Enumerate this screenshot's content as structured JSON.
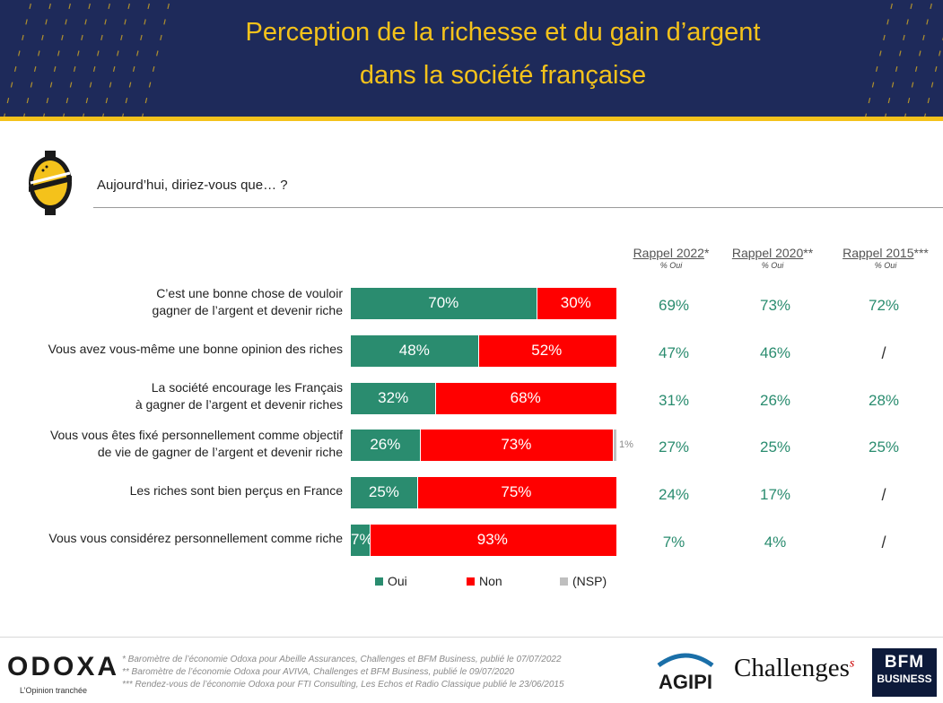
{
  "header": {
    "title_line1": "Perception de la richesse et du gain d’argent",
    "title_line2": "dans la société française"
  },
  "question": "Aujourd’hui, diriez-vous que… ?",
  "rappel": [
    {
      "label": "Rappel 2022",
      "stars": "*",
      "sub": "% Oui"
    },
    {
      "label": "Rappel 2020",
      "stars": "**",
      "sub": "% Oui"
    },
    {
      "label": "Rappel 2015",
      "stars": "***",
      "sub": "% Oui"
    }
  ],
  "chart_data": {
    "type": "bar",
    "orientation": "horizontal",
    "stacked": "100%",
    "categories": [
      "C’est une bonne chose de vouloir gagner de l’argent et devenir riche",
      "Vous avez vous-même une bonne opinion des riches",
      "La société encourage les Français à gagner de l’argent et devenir riches",
      "Vous vous êtes fixé personnellement comme objectif de vie de gagner de l’argent et devenir riche",
      "Les riches sont bien perçus en France",
      "Vous vous considérez personnellement comme riche"
    ],
    "category_lines": [
      [
        "C’est une bonne chose de vouloir",
        "gagner de l’argent et devenir riche"
      ],
      [
        "Vous avez vous-même une bonne opinion des riches"
      ],
      [
        "La société encourage les Français",
        "à gagner de l’argent et devenir riches"
      ],
      [
        "Vous vous êtes fixé personnellement comme objectif",
        "de vie de gagner de l’argent et devenir riche"
      ],
      [
        "Les riches sont bien perçus en France"
      ],
      [
        "Vous vous considérez personnellement comme riche"
      ]
    ],
    "series": [
      {
        "name": "Oui",
        "color": "#2a8c6f",
        "values": [
          70,
          48,
          32,
          26,
          25,
          7
        ]
      },
      {
        "name": "Non",
        "color": "#ff0000",
        "values": [
          30,
          52,
          68,
          73,
          75,
          93
        ]
      },
      {
        "name": "(NSP)",
        "color": "#bfbfbf",
        "values": [
          0,
          0,
          0,
          1,
          0,
          0
        ]
      }
    ],
    "value_suffix": "%",
    "rappel_values": [
      [
        "69%",
        "73%",
        "72%"
      ],
      [
        "47%",
        "46%",
        "/"
      ],
      [
        "31%",
        "26%",
        "28%"
      ],
      [
        "27%",
        "25%",
        "25%"
      ],
      [
        "24%",
        "17%",
        "/"
      ],
      [
        "7%",
        "4%",
        "/"
      ]
    ],
    "legend_position": "bottom"
  },
  "footer": {
    "logo": "ODOXA",
    "tagline": "L’Opinion tranchée",
    "notes": [
      "* Baromètre de l’économie Odoxa  pour Abeille Assurances, Challenges et BFM Business, publié le 07/07/2022",
      "** Baromètre de l’économie Odoxa  pour AVIVA, Challenges et BFM Business, publié le 09/07/2020",
      "*** Rendez-vous de l’économie Odoxa pour FTI Consulting, Les Echos et Radio Classique publié le 23/06/2015"
    ],
    "agipi": "AGIPI",
    "challenges": "Challenges",
    "challenges_mark": "s",
    "bfm_line1": "BFM",
    "bfm_line2": "BUSINESS"
  },
  "colors": {
    "navy": "#1e2a5a",
    "gold": "#f4c21b",
    "green": "#2a8c6f",
    "red": "#ff0000",
    "grey": "#bfbfbf"
  }
}
